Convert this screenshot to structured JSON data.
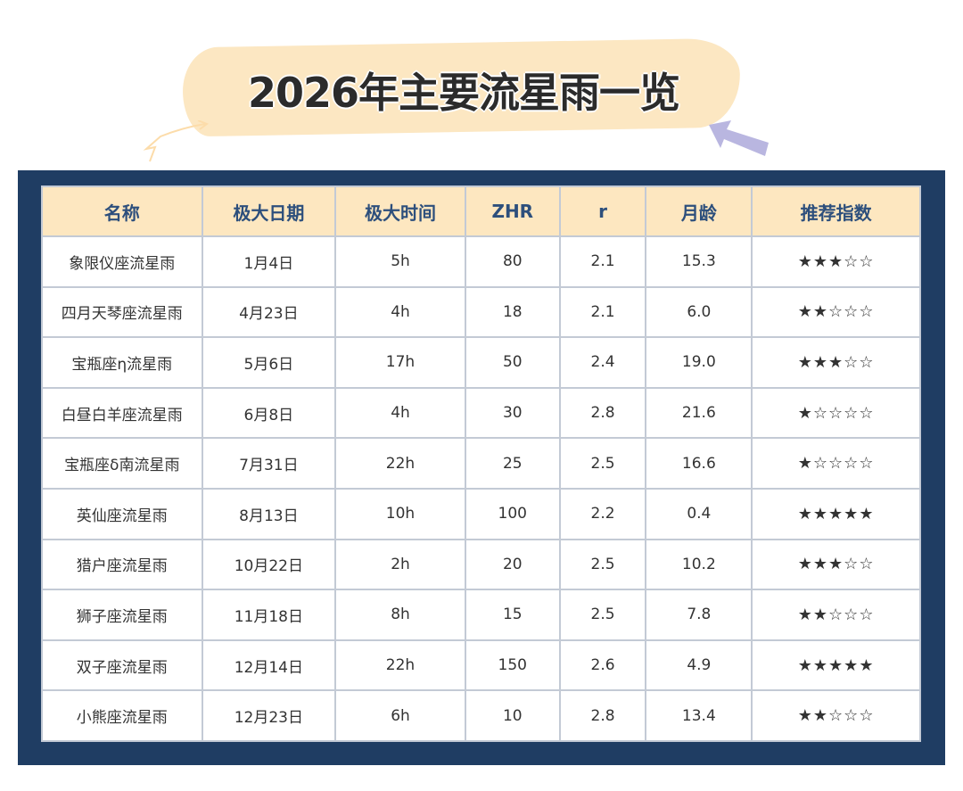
{
  "title": "2026年主要流星雨一览",
  "colors": {
    "panel": "#1f3d63",
    "header_bg": "#fde7c0",
    "header_text": "#2d4f7c",
    "highlight": "#fce7c2",
    "arrow": "#b9b6e0"
  },
  "table": {
    "headers": [
      "名称",
      "极大日期",
      "极大时间",
      "ZHR",
      "r",
      "月龄",
      "推荐指数"
    ],
    "rows": [
      [
        "象限仪座流星雨",
        "1月4日",
        "5h",
        "80",
        "2.1",
        "15.3",
        "★★★☆☆"
      ],
      [
        "四月天琴座流星雨",
        "4月23日",
        "4h",
        "18",
        "2.1",
        "6.0",
        "★★☆☆☆"
      ],
      [
        "宝瓶座η流星雨",
        "5月6日",
        "17h",
        "50",
        "2.4",
        "19.0",
        "★★★☆☆"
      ],
      [
        "白昼白羊座流星雨",
        "6月8日",
        "4h",
        "30",
        "2.8",
        "21.6",
        "★☆☆☆☆"
      ],
      [
        "宝瓶座δ南流星雨",
        "7月31日",
        "22h",
        "25",
        "2.5",
        "16.6",
        "★☆☆☆☆"
      ],
      [
        "英仙座流星雨",
        "8月13日",
        "10h",
        "100",
        "2.2",
        "0.4",
        "★★★★★"
      ],
      [
        "猎户座流星雨",
        "10月22日",
        "2h",
        "20",
        "2.5",
        "10.2",
        "★★★☆☆"
      ],
      [
        "狮子座流星雨",
        "11月18日",
        "8h",
        "15",
        "2.5",
        "7.8",
        "★★☆☆☆"
      ],
      [
        "双子座流星雨",
        "12月14日",
        "22h",
        "150",
        "2.6",
        "4.9",
        "★★★★★"
      ],
      [
        "小熊座流星雨",
        "12月23日",
        "6h",
        "10",
        "2.8",
        "13.4",
        "★★☆☆☆"
      ]
    ]
  }
}
